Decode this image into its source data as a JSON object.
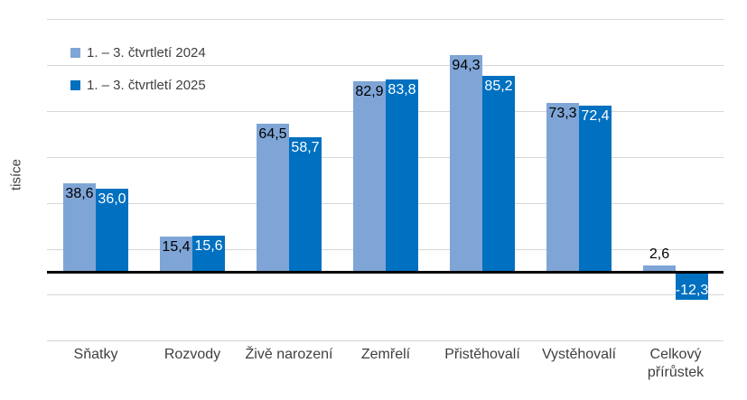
{
  "chart_data": {
    "type": "bar",
    "title": "",
    "xlabel": "",
    "ylabel": "tisíce",
    "categories": [
      "Sňatky",
      "Rozvody",
      "Živě narození",
      "Zemřelí",
      "Přistěhovalí",
      "Vystěhovalí",
      "Celkový přírůstek"
    ],
    "series": [
      {
        "name": "1. – 3. čtvrtletí 2024",
        "color": "#7fa5d6",
        "label_color": "#000000",
        "values": [
          38.6,
          15.4,
          64.5,
          82.9,
          94.3,
          73.3,
          2.6
        ],
        "labels": [
          "38,6",
          "15,4",
          "64,5",
          "82,9",
          "94,3",
          "73,3",
          "2,6"
        ]
      },
      {
        "name": "1. – 3. čtvrtletí 2025",
        "color": "#0070c0",
        "label_color": "#ffffff",
        "values": [
          36.0,
          15.6,
          58.7,
          83.8,
          85.2,
          72.4,
          -12.3
        ],
        "labels": [
          "36,0",
          "15,6",
          "58,7",
          "83,8",
          "85,2",
          "72,4",
          "-12,3"
        ]
      }
    ],
    "ylim": [
      -30,
      110
    ],
    "grid_step": 20,
    "grid": true,
    "y_tick_labels_shown": false,
    "legend_position": "top-left",
    "gridline_color": "#d6d6d6",
    "zero_line_color": "#000000",
    "background_color": "#ffffff"
  }
}
